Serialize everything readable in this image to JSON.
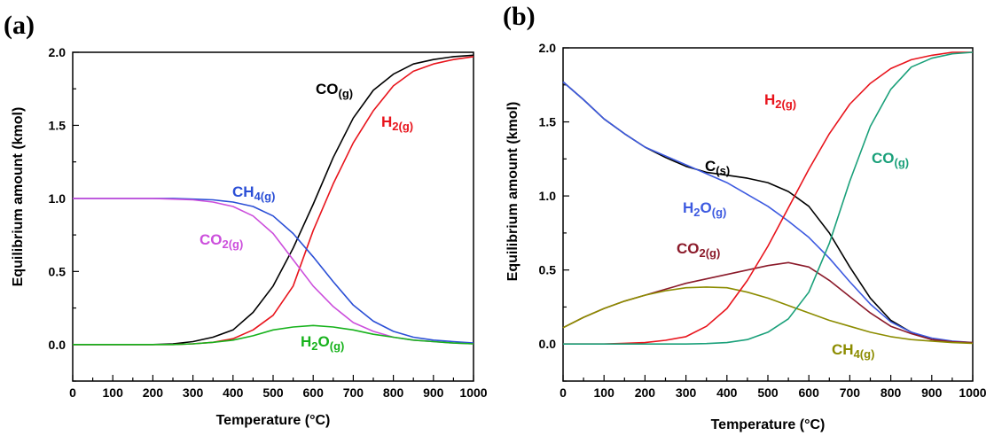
{
  "chart_data": [
    {
      "panel_label": "(a)",
      "type": "line",
      "xlabel": "Temperature (°C)",
      "ylabel": "Equilibrium amount (kmol)",
      "xlim": [
        0,
        1000
      ],
      "ylim": [
        -0.25,
        2.0
      ],
      "xticks": [
        "0",
        "100",
        "200",
        "300",
        "400",
        "500",
        "600",
        "700",
        "800",
        "900",
        "1000"
      ],
      "yticks": [
        "0.0",
        "0.5",
        "1.0",
        "1.5",
        "2.0"
      ],
      "grid": false,
      "x": [
        0,
        50,
        100,
        150,
        200,
        250,
        300,
        350,
        400,
        450,
        500,
        550,
        600,
        650,
        700,
        750,
        800,
        850,
        900,
        950,
        1000
      ],
      "series": [
        {
          "name": "CO(g)",
          "label_parts": [
            [
              "CO",
              false
            ],
            [
              "(g)",
              true
            ]
          ],
          "color": "#000000",
          "values": [
            0,
            0,
            0,
            0,
            0,
            0.005,
            0.02,
            0.05,
            0.1,
            0.22,
            0.4,
            0.66,
            0.96,
            1.28,
            1.55,
            1.74,
            1.85,
            1.92,
            1.95,
            1.97,
            1.98
          ]
        },
        {
          "name": "H2(g)",
          "label_parts": [
            [
              "H",
              false
            ],
            [
              "2(g)",
              true
            ]
          ],
          "color": "#e8141c",
          "values": [
            0,
            0,
            0,
            0,
            0,
            0,
            0.005,
            0.015,
            0.04,
            0.1,
            0.2,
            0.4,
            0.78,
            1.1,
            1.38,
            1.6,
            1.77,
            1.87,
            1.92,
            1.95,
            1.97
          ]
        },
        {
          "name": "CH4(g)",
          "label_parts": [
            [
              "CH",
              false
            ],
            [
              "4(g)",
              true
            ]
          ],
          "color": "#2b4fd6",
          "values": [
            1.0,
            1.0,
            1.0,
            1.0,
            1.0,
            1.0,
            0.995,
            0.99,
            0.975,
            0.945,
            0.88,
            0.76,
            0.6,
            0.43,
            0.27,
            0.16,
            0.09,
            0.05,
            0.03,
            0.02,
            0.01
          ]
        },
        {
          "name": "CO2(g)",
          "label_parts": [
            [
              "CO",
              false
            ],
            [
              "2(g)",
              true
            ]
          ],
          "color": "#cc4fdc",
          "values": [
            1.0,
            1.0,
            1.0,
            1.0,
            1.0,
            0.995,
            0.99,
            0.975,
            0.945,
            0.88,
            0.76,
            0.58,
            0.4,
            0.26,
            0.15,
            0.09,
            0.05,
            0.03,
            0.02,
            0.01,
            0.005
          ]
        },
        {
          "name": "H2O(g)",
          "label_parts": [
            [
              "H",
              false
            ],
            [
              "2",
              true
            ],
            [
              "O",
              false
            ],
            [
              "(g)",
              true
            ]
          ],
          "color": "#17b21c",
          "values": [
            0,
            0,
            0,
            0,
            0,
            0,
            0.005,
            0.015,
            0.03,
            0.06,
            0.1,
            0.12,
            0.13,
            0.12,
            0.1,
            0.07,
            0.05,
            0.03,
            0.02,
            0.01,
            0.005
          ]
        }
      ]
    },
    {
      "panel_label": "(b)",
      "type": "line",
      "xlabel": "Temperature (°C)",
      "ylabel": "Equilibrium amount (kmol)",
      "xlim": [
        0,
        1000
      ],
      "ylim": [
        -0.25,
        2.0
      ],
      "xticks": [
        "0",
        "100",
        "200",
        "300",
        "400",
        "500",
        "600",
        "700",
        "800",
        "900",
        "1000"
      ],
      "yticks": [
        "0.0",
        "0.5",
        "1.0",
        "1.5",
        "2.0"
      ],
      "grid": false,
      "x": [
        0,
        50,
        100,
        150,
        200,
        250,
        300,
        350,
        400,
        450,
        500,
        550,
        600,
        650,
        700,
        750,
        800,
        850,
        900,
        950,
        1000
      ],
      "series": [
        {
          "name": "C(s)",
          "label_parts": [
            [
              "C",
              false
            ],
            [
              "(s)",
              true
            ]
          ],
          "color": "#000000",
          "values": [
            1.77,
            1.65,
            1.52,
            1.42,
            1.33,
            1.26,
            1.2,
            1.16,
            1.14,
            1.12,
            1.09,
            1.03,
            0.93,
            0.75,
            0.52,
            0.31,
            0.16,
            0.08,
            0.03,
            0.015,
            0.01
          ]
        },
        {
          "name": "H2O(g)",
          "label_parts": [
            [
              "H",
              false
            ],
            [
              "2",
              true
            ],
            [
              "O",
              false
            ],
            [
              "(g)",
              true
            ]
          ],
          "color": "#3d5ae0",
          "values": [
            1.77,
            1.65,
            1.52,
            1.42,
            1.33,
            1.27,
            1.21,
            1.15,
            1.09,
            1.01,
            0.93,
            0.83,
            0.72,
            0.58,
            0.42,
            0.27,
            0.15,
            0.08,
            0.04,
            0.02,
            0.01
          ]
        },
        {
          "name": "CO2(g)",
          "label_parts": [
            [
              "CO",
              false
            ],
            [
              "2(g)",
              true
            ]
          ],
          "color": "#8b1a2a",
          "values": [
            0.11,
            0.18,
            0.24,
            0.29,
            0.33,
            0.37,
            0.41,
            0.44,
            0.47,
            0.5,
            0.53,
            0.55,
            0.52,
            0.43,
            0.32,
            0.21,
            0.12,
            0.07,
            0.03,
            0.015,
            0.01
          ]
        },
        {
          "name": "CH4(g)",
          "label_parts": [
            [
              "CH",
              false
            ],
            [
              "4(g)",
              true
            ]
          ],
          "color": "#8c8c00",
          "values": [
            0.11,
            0.18,
            0.24,
            0.29,
            0.33,
            0.36,
            0.38,
            0.385,
            0.38,
            0.35,
            0.31,
            0.26,
            0.21,
            0.16,
            0.12,
            0.08,
            0.05,
            0.03,
            0.02,
            0.01,
            0.005
          ]
        },
        {
          "name": "H2(g)",
          "label_parts": [
            [
              "H",
              false
            ],
            [
              "2(g)",
              true
            ]
          ],
          "color": "#e8141c",
          "values": [
            0,
            0,
            0,
            0.005,
            0.01,
            0.025,
            0.05,
            0.12,
            0.24,
            0.43,
            0.66,
            0.92,
            1.18,
            1.42,
            1.62,
            1.76,
            1.86,
            1.92,
            1.95,
            1.97,
            1.97
          ]
        },
        {
          "name": "CO(g)",
          "label_parts": [
            [
              "CO",
              false
            ],
            [
              "(g)",
              true
            ]
          ],
          "color": "#1aa07a",
          "values": [
            0,
            0,
            0,
            0,
            0,
            0,
            0,
            0.003,
            0.01,
            0.03,
            0.08,
            0.17,
            0.35,
            0.68,
            1.1,
            1.47,
            1.72,
            1.87,
            1.93,
            1.96,
            1.97
          ]
        }
      ]
    }
  ]
}
